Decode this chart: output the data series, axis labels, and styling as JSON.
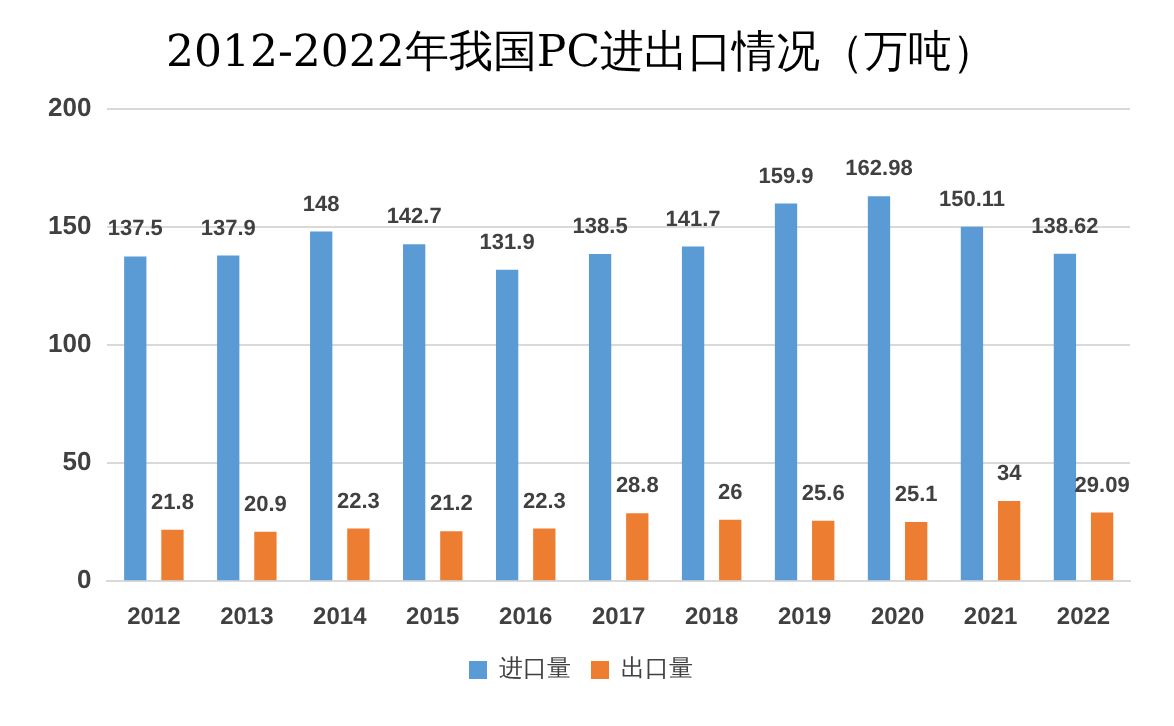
{
  "chart_data": {
    "type": "bar",
    "title": "2012-2022年我国PC进出口情况（万吨）",
    "categories": [
      "2012",
      "2013",
      "2014",
      "2015",
      "2016",
      "2017",
      "2018",
      "2019",
      "2020",
      "2021",
      "2022"
    ],
    "series": [
      {
        "name": "进口量",
        "color": "#5b9bd5",
        "values": [
          137.5,
          137.9,
          148,
          142.7,
          131.9,
          138.5,
          141.7,
          159.9,
          162.98,
          150.11,
          138.62
        ]
      },
      {
        "name": "出口量",
        "color": "#ed7d31",
        "values": [
          21.8,
          20.9,
          22.3,
          21.2,
          22.3,
          28.8,
          26,
          25.6,
          25.1,
          34,
          29.09
        ]
      }
    ],
    "ylim": [
      0,
      200
    ],
    "yticks": [
      0,
      50,
      100,
      150,
      200
    ],
    "grid": "y",
    "legend": "bottom",
    "data_labels": true
  }
}
